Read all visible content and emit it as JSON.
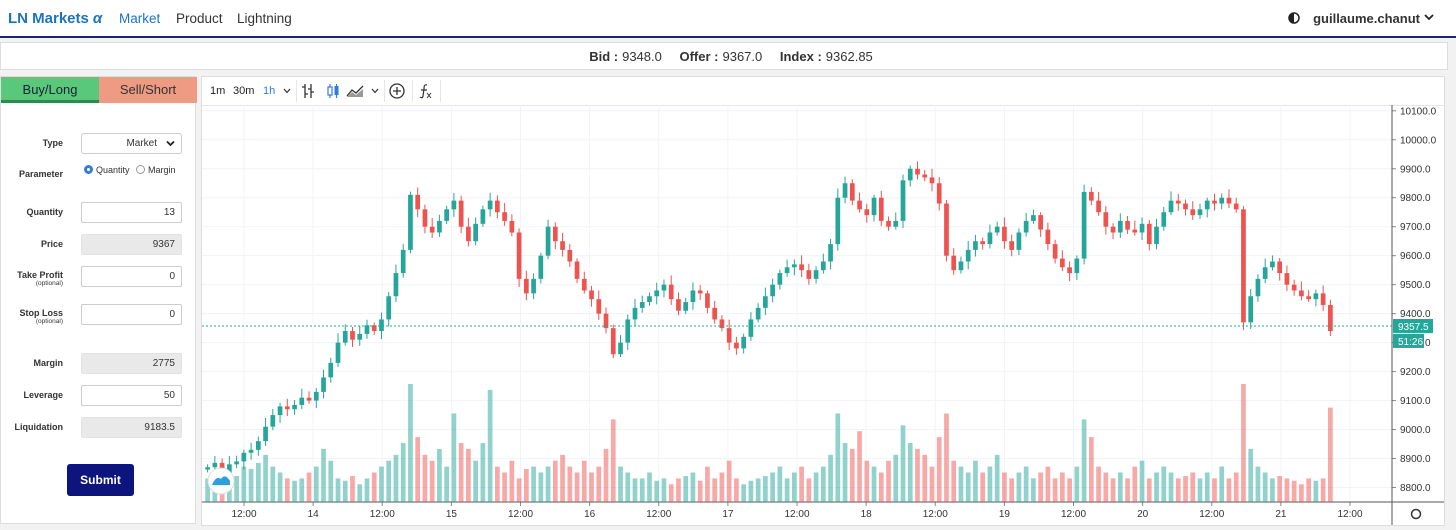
{
  "nav": {
    "brand": "LN Markets",
    "brand_suffix": "α",
    "links": [
      "Market",
      "Product",
      "Lightning"
    ],
    "user": "guillaume.chanut"
  },
  "quote": {
    "bid_label": "Bid :",
    "bid": "9348.0",
    "offer_label": "Offer :",
    "offer": "9367.0",
    "index_label": "Index :",
    "index": "9362.85"
  },
  "order": {
    "tabs": {
      "buy": "Buy/Long",
      "sell": "Sell/Short"
    },
    "type_label": "Type",
    "type_value": "Market",
    "parameter_label": "Parameter",
    "param_quantity": "Quantity",
    "param_margin": "Margin",
    "quantity_label": "Quantity",
    "quantity": "13",
    "price_label": "Price",
    "price": "9367",
    "take_profit_label": "Take Profit",
    "take_profit_sub": "(optional)",
    "take_profit": "0",
    "stop_loss_label": "Stop Loss",
    "stop_loss_sub": "(optional)",
    "stop_loss": "0",
    "margin_label": "Margin",
    "margin": "2775",
    "leverage_label": "Leverage",
    "leverage": "50",
    "liquidation_label": "Liquidation",
    "liquidation": "9183.5",
    "submit": "Submit"
  },
  "chart_toolbar": {
    "intervals": [
      "1m",
      "30m",
      "1h"
    ],
    "selected": "1h",
    "indicator_icon": "fx-icon"
  },
  "chart_data": {
    "type": "candlestick",
    "ylim": [
      8750,
      10120
    ],
    "yticks": [
      "10100.0",
      "10000.0",
      "9900.0",
      "9800.0",
      "9700.0",
      "9600.0",
      "9500.0",
      "9400.0",
      "9300.0",
      "9200.0",
      "9100.0",
      "9000.0",
      "8900.0",
      "8800.0"
    ],
    "xticks": [
      "12:00",
      "14",
      "12:00",
      "15",
      "12:00",
      "16",
      "12:00",
      "17",
      "12:00",
      "18",
      "12:00",
      "19",
      "12:00",
      "20",
      "12:00",
      "21",
      "12:00"
    ],
    "last_price": "9357.5",
    "countdown": "51:26",
    "candles_close": [
      8870,
      8885,
      8850,
      8880,
      8890,
      8920,
      8930,
      8960,
      9010,
      9050,
      9080,
      9070,
      9085,
      9110,
      9100,
      9130,
      9180,
      9230,
      9300,
      9340,
      9310,
      9330,
      9360,
      9340,
      9380,
      9460,
      9540,
      9620,
      9810,
      9760,
      9700,
      9680,
      9720,
      9760,
      9790,
      9700,
      9650,
      9710,
      9760,
      9790,
      9750,
      9720,
      9680,
      9520,
      9470,
      9520,
      9600,
      9700,
      9650,
      9620,
      9580,
      9520,
      9480,
      9450,
      9400,
      9350,
      9260,
      9300,
      9380,
      9420,
      9440,
      9460,
      9480,
      9500,
      9450,
      9410,
      9440,
      9480,
      9470,
      9420,
      9380,
      9350,
      9300,
      9280,
      9320,
      9380,
      9420,
      9460,
      9500,
      9540,
      9560,
      9570,
      9550,
      9520,
      9550,
      9580,
      9640,
      9800,
      9850,
      9790,
      9760,
      9740,
      9800,
      9720,
      9700,
      9720,
      9860,
      9900,
      9880,
      9870,
      9850,
      9780,
      9600,
      9550,
      9580,
      9620,
      9650,
      9640,
      9680,
      9700,
      9650,
      9620,
      9680,
      9720,
      9740,
      9690,
      9640,
      9590,
      9560,
      9540,
      9590,
      9820,
      9790,
      9750,
      9700,
      9680,
      9720,
      9690,
      9680,
      9710,
      9640,
      9700,
      9750,
      9790,
      9780,
      9760,
      9740,
      9760,
      9790,
      9780,
      9800,
      9780,
      9760,
      9370,
      9460,
      9520,
      9560,
      9580,
      9540,
      9500,
      9480,
      9460,
      9450,
      9470,
      9430,
      9340
    ],
    "volume_relative": [
      0.2,
      0.25,
      0.15,
      0.2,
      0.22,
      0.3,
      0.28,
      0.33,
      0.4,
      0.3,
      0.25,
      0.2,
      0.18,
      0.2,
      0.25,
      0.3,
      0.45,
      0.35,
      0.2,
      0.18,
      0.22,
      0.15,
      0.2,
      0.25,
      0.3,
      0.35,
      0.4,
      0.5,
      1.0,
      0.55,
      0.4,
      0.35,
      0.45,
      0.3,
      0.75,
      0.5,
      0.45,
      0.35,
      0.5,
      0.95,
      0.3,
      0.25,
      0.35,
      0.2,
      0.28,
      0.3,
      0.25,
      0.3,
      0.35,
      0.4,
      0.3,
      0.25,
      0.35,
      0.25,
      0.3,
      0.45,
      0.7,
      0.3,
      0.25,
      0.2,
      0.2,
      0.25,
      0.18,
      0.2,
      0.15,
      0.2,
      0.22,
      0.25,
      0.18,
      0.3,
      0.2,
      0.25,
      0.35,
      0.2,
      0.15,
      0.18,
      0.2,
      0.22,
      0.25,
      0.3,
      0.2,
      0.25,
      0.3,
      0.2,
      0.25,
      0.3,
      0.4,
      0.75,
      0.5,
      0.45,
      0.6,
      0.35,
      0.3,
      0.25,
      0.35,
      0.4,
      0.65,
      0.5,
      0.45,
      0.4,
      0.3,
      0.55,
      0.75,
      0.35,
      0.3,
      0.25,
      0.35,
      0.25,
      0.3,
      0.4,
      0.25,
      0.2,
      0.25,
      0.3,
      0.2,
      0.25,
      0.3,
      0.2,
      0.25,
      0.2,
      0.3,
      0.7,
      0.55,
      0.3,
      0.25,
      0.2,
      0.25,
      0.2,
      0.3,
      0.35,
      0.2,
      0.25,
      0.3,
      0.25,
      0.2,
      0.22,
      0.25,
      0.2,
      0.25,
      0.2,
      0.3,
      0.2,
      0.25,
      1.0,
      0.45,
      0.3,
      0.25,
      0.2,
      0.22,
      0.2,
      0.18,
      0.15,
      0.2,
      0.18,
      0.2,
      0.8
    ]
  },
  "colors": {
    "up": "#26a69a",
    "down": "#ef5350",
    "accent": "#2f7de1",
    "submit": "#0d147d"
  }
}
